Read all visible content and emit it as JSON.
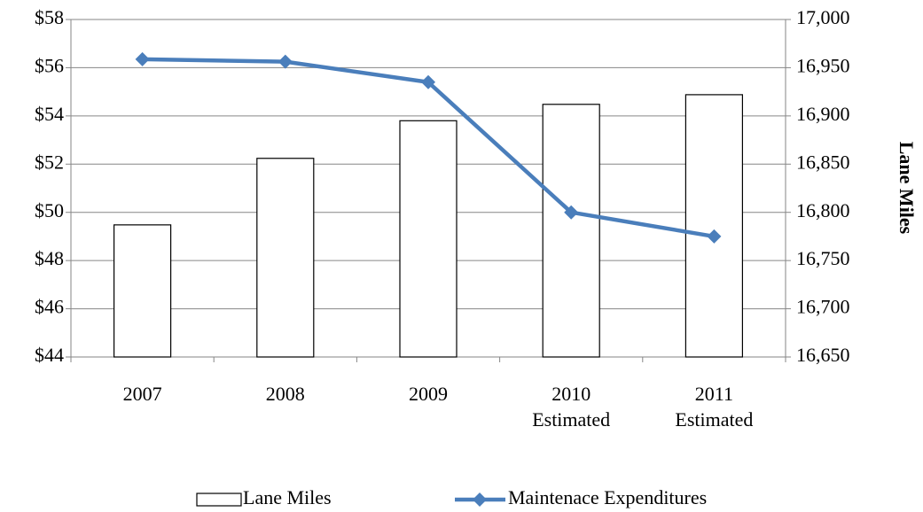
{
  "chart_data": {
    "type": "bar-line",
    "categories": [
      "2007",
      "2008",
      "2009",
      "2010 Estimated",
      "2011 Estimated"
    ],
    "series": [
      {
        "name": "Lane Miles",
        "type": "bar",
        "axis": "y2",
        "color": "#ffffff",
        "values": [
          16787,
          16856,
          16895,
          16912,
          16922
        ]
      },
      {
        "name": "Maintenace Expenditures",
        "type": "line",
        "axis": "y",
        "color": "#4a7ebb",
        "values": [
          56.35,
          56.25,
          55.4,
          50.0,
          49.0
        ]
      }
    ],
    "ylim": [
      44,
      58
    ],
    "yticks": [
      {
        "value": 44,
        "label": "$44"
      },
      {
        "value": 46,
        "label": "$46"
      },
      {
        "value": 48,
        "label": "$48"
      },
      {
        "value": 50,
        "label": "$50"
      },
      {
        "value": 52,
        "label": "$52"
      },
      {
        "value": 54,
        "label": "$54"
      },
      {
        "value": 56,
        "label": "$56"
      },
      {
        "value": 58,
        "label": "$58"
      }
    ],
    "y2lim": [
      16650,
      17000
    ],
    "y2ticks": [
      {
        "value": 16650,
        "label": "16,650"
      },
      {
        "value": 16700,
        "label": "16,700"
      },
      {
        "value": 16750,
        "label": "16,750"
      },
      {
        "value": 16800,
        "label": "16,800"
      },
      {
        "value": 16850,
        "label": "16,850"
      },
      {
        "value": 16900,
        "label": "16,900"
      },
      {
        "value": 16950,
        "label": "16,950"
      },
      {
        "value": 17000,
        "label": "17,000"
      }
    ],
    "y2label": "Lane Miles",
    "grid": true
  }
}
